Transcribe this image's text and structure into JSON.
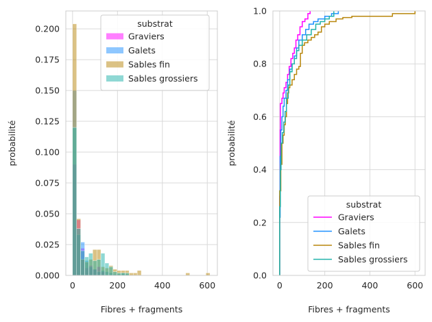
{
  "chart_data": [
    {
      "type": "histogram",
      "xlabel": "Fibres + fragments",
      "ylabel": "probabilité",
      "xlim": [
        -30,
        645
      ],
      "ylim": [
        0,
        0.2145
      ],
      "xticks": [
        "0",
        "200",
        "400",
        "600"
      ],
      "xtick_values": [
        0,
        200,
        400,
        600
      ],
      "yticks": [
        "0.000",
        "0.025",
        "0.050",
        "0.075",
        "0.100",
        "0.125",
        "0.150",
        "0.175",
        "0.200"
      ],
      "ytick_values": [
        0,
        0.025,
        0.05,
        0.075,
        0.1,
        0.125,
        0.15,
        0.175,
        0.2
      ],
      "grid": true,
      "bin_width": 18,
      "legend": {
        "title": "substrat",
        "placement": "top-right",
        "entries": [
          "Graviers",
          "Galets",
          "Sables fin",
          "Sables grossiers"
        ]
      },
      "series": [
        {
          "name": "Graviers",
          "color": "#ff00ff",
          "bins": [
            [
              0,
              0.09
            ],
            [
              18,
              0.045
            ],
            [
              36,
              0.022
            ],
            [
              54,
              0.006
            ],
            [
              72,
              0.008
            ],
            [
              90,
              0.005
            ],
            [
              108,
              0.007
            ],
            [
              126,
              0.003
            ]
          ]
        },
        {
          "name": "Galets",
          "color": "#1e90ff",
          "bins": [
            [
              0,
              0.15
            ],
            [
              18,
              0.033
            ],
            [
              36,
              0.027
            ],
            [
              54,
              0.012
            ],
            [
              72,
              0.007
            ],
            [
              90,
              0.005
            ],
            [
              108,
              0.003
            ],
            [
              126,
              0.004
            ],
            [
              144,
              0.003
            ],
            [
              162,
              0.002
            ],
            [
              180,
              0.001
            ],
            [
              198,
              0.001
            ],
            [
              216,
              0.002
            ],
            [
              234,
              0.001
            ]
          ]
        },
        {
          "name": "Sables fin",
          "color": "#b8860b",
          "bins": [
            [
              0,
              0.204
            ],
            [
              18,
              0.046
            ],
            [
              36,
              0.013
            ],
            [
              54,
              0.011
            ],
            [
              72,
              0.013
            ],
            [
              90,
              0.021
            ],
            [
              108,
              0.021
            ],
            [
              126,
              0.007
            ],
            [
              144,
              0.006
            ],
            [
              162,
              0.008
            ],
            [
              180,
              0.005
            ],
            [
              198,
              0.004
            ],
            [
              216,
              0.004
            ],
            [
              234,
              0.004
            ],
            [
              252,
              0.002
            ],
            [
              270,
              0.002
            ],
            [
              288,
              0.004
            ],
            [
              504,
              0.002
            ],
            [
              594,
              0.002
            ]
          ]
        },
        {
          "name": "Sables grossiers",
          "color": "#20b2aa",
          "bins": [
            [
              0,
              0.12
            ],
            [
              18,
              0.038
            ],
            [
              36,
              0.02
            ],
            [
              54,
              0.015
            ],
            [
              72,
              0.018
            ],
            [
              90,
              0.012
            ],
            [
              108,
              0.013
            ],
            [
              126,
              0.018
            ],
            [
              144,
              0.01
            ],
            [
              162,
              0.007
            ],
            [
              180,
              0.003
            ],
            [
              198,
              0.002
            ],
            [
              216,
              0.002
            ],
            [
              234,
              0.002
            ]
          ]
        }
      ]
    },
    {
      "type": "line",
      "subtype": "ecdf-step",
      "xlabel": "Fibres + fragments",
      "ylabel": "probabilité",
      "xlim": [
        -30,
        645
      ],
      "ylim": [
        0,
        1
      ],
      "xticks": [
        "0",
        "200",
        "400",
        "600"
      ],
      "xtick_values": [
        0,
        200,
        400,
        600
      ],
      "yticks": [
        "0.0",
        "0.2",
        "0.4",
        "0.6",
        "0.8",
        "1.0"
      ],
      "ytick_values": [
        0,
        0.2,
        0.4,
        0.6,
        0.8,
        1.0
      ],
      "grid": true,
      "legend": {
        "title": "substrat",
        "placement": "lower-right",
        "entries": [
          "Graviers",
          "Galets",
          "Sables fin",
          "Sables grossiers"
        ]
      },
      "series": [
        {
          "name": "Graviers",
          "color": "#ff00ff",
          "points": [
            [
              0,
              0.0
            ],
            [
              0,
              0.3
            ],
            [
              2,
              0.55
            ],
            [
              3,
              0.65
            ],
            [
              8,
              0.65
            ],
            [
              10,
              0.67
            ],
            [
              15,
              0.69
            ],
            [
              20,
              0.71
            ],
            [
              28,
              0.73
            ],
            [
              35,
              0.76
            ],
            [
              42,
              0.79
            ],
            [
              50,
              0.82
            ],
            [
              58,
              0.84
            ],
            [
              65,
              0.86
            ],
            [
              72,
              0.89
            ],
            [
              80,
              0.91
            ],
            [
              90,
              0.94
            ],
            [
              100,
              0.96
            ],
            [
              112,
              0.97
            ],
            [
              125,
              0.99
            ],
            [
              135,
              1.0
            ]
          ]
        },
        {
          "name": "Galets",
          "color": "#1e90ff",
          "points": [
            [
              0,
              0.0
            ],
            [
              0,
              0.22
            ],
            [
              2,
              0.45
            ],
            [
              5,
              0.55
            ],
            [
              10,
              0.6
            ],
            [
              15,
              0.64
            ],
            [
              20,
              0.67
            ],
            [
              28,
              0.7
            ],
            [
              35,
              0.74
            ],
            [
              45,
              0.78
            ],
            [
              55,
              0.8
            ],
            [
              65,
              0.83
            ],
            [
              75,
              0.86
            ],
            [
              85,
              0.89
            ],
            [
              100,
              0.91
            ],
            [
              115,
              0.93
            ],
            [
              130,
              0.95
            ],
            [
              150,
              0.96
            ],
            [
              170,
              0.97
            ],
            [
              200,
              0.98
            ],
            [
              230,
              0.99
            ],
            [
              260,
              1.0
            ]
          ]
        },
        {
          "name": "Sables fin",
          "color": "#b8860b",
          "points": [
            [
              0,
              0.0
            ],
            [
              0,
              0.32
            ],
            [
              5,
              0.42
            ],
            [
              10,
              0.5
            ],
            [
              15,
              0.53
            ],
            [
              20,
              0.57
            ],
            [
              25,
              0.6
            ],
            [
              30,
              0.65
            ],
            [
              35,
              0.69
            ],
            [
              40,
              0.71
            ],
            [
              45,
              0.72
            ],
            [
              55,
              0.74
            ],
            [
              65,
              0.76
            ],
            [
              75,
              0.78
            ],
            [
              85,
              0.79
            ],
            [
              92,
              0.84
            ],
            [
              100,
              0.87
            ],
            [
              110,
              0.88
            ],
            [
              125,
              0.89
            ],
            [
              140,
              0.9
            ],
            [
              155,
              0.91
            ],
            [
              170,
              0.92
            ],
            [
              185,
              0.94
            ],
            [
              200,
              0.95
            ],
            [
              220,
              0.96
            ],
            [
              250,
              0.97
            ],
            [
              280,
              0.975
            ],
            [
              320,
              0.98
            ],
            [
              500,
              0.99
            ],
            [
              600,
              1.0
            ]
          ]
        },
        {
          "name": "Sables grossiers",
          "color": "#20b2aa",
          "points": [
            [
              0,
              0.0
            ],
            [
              0,
              0.26
            ],
            [
              3,
              0.4
            ],
            [
              6,
              0.5
            ],
            [
              12,
              0.54
            ],
            [
              18,
              0.58
            ],
            [
              24,
              0.62
            ],
            [
              30,
              0.67
            ],
            [
              38,
              0.72
            ],
            [
              45,
              0.77
            ],
            [
              55,
              0.8
            ],
            [
              65,
              0.82
            ],
            [
              75,
              0.85
            ],
            [
              85,
              0.87
            ],
            [
              100,
              0.89
            ],
            [
              120,
              0.91
            ],
            [
              140,
              0.93
            ],
            [
              160,
              0.95
            ],
            [
              180,
              0.96
            ],
            [
              200,
              0.97
            ],
            [
              220,
              0.98
            ],
            [
              240,
              1.0
            ]
          ]
        }
      ]
    }
  ]
}
